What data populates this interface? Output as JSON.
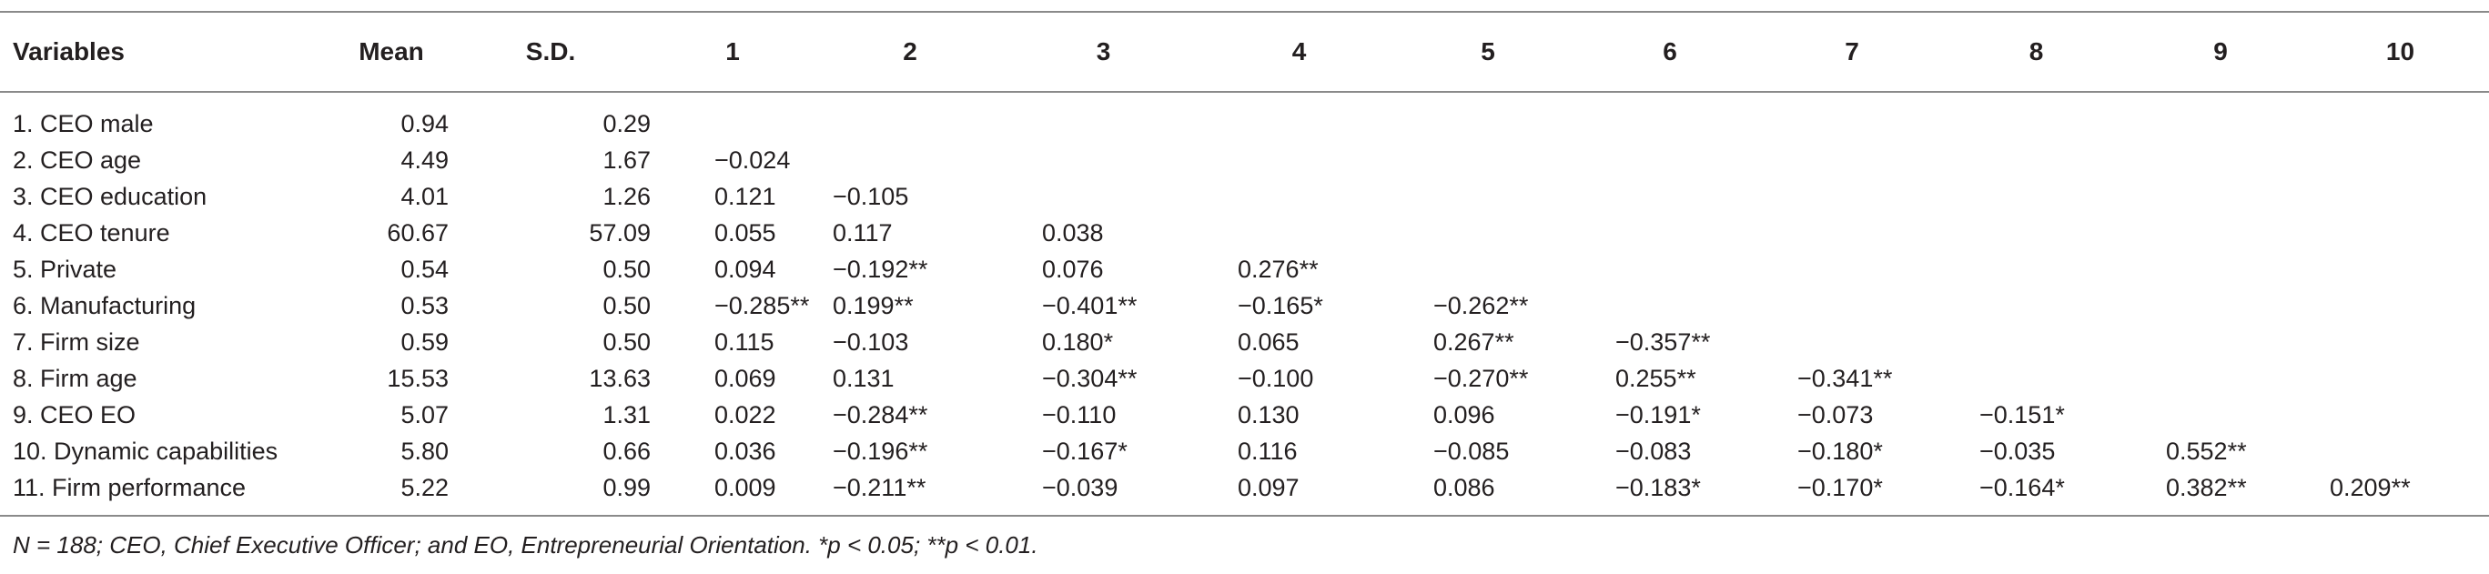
{
  "table": {
    "headers": [
      "Variables",
      "Mean",
      "S.D.",
      "1",
      "2",
      "3",
      "4",
      "5",
      "6",
      "7",
      "8",
      "9",
      "10"
    ],
    "rows": [
      {
        "variable": "1. CEO male",
        "mean": "0.94",
        "sd": "0.29",
        "corr": [
          "",
          "",
          "",
          "",
          "",
          "",
          "",
          "",
          "",
          ""
        ]
      },
      {
        "variable": "2. CEO age",
        "mean": "4.49",
        "sd": "1.67",
        "corr": [
          "−0.024",
          "",
          "",
          "",
          "",
          "",
          "",
          "",
          "",
          ""
        ]
      },
      {
        "variable": "3. CEO education",
        "mean": "4.01",
        "sd": "1.26",
        "corr": [
          "0.121",
          "−0.105",
          "",
          "",
          "",
          "",
          "",
          "",
          "",
          ""
        ]
      },
      {
        "variable": "4. CEO tenure",
        "mean": "60.67",
        "sd": "57.09",
        "corr": [
          "0.055",
          "0.117",
          "0.038",
          "",
          "",
          "",
          "",
          "",
          "",
          ""
        ]
      },
      {
        "variable": "5. Private",
        "mean": "0.54",
        "sd": "0.50",
        "corr": [
          "0.094",
          "−0.192**",
          "0.076",
          "0.276**",
          "",
          "",
          "",
          "",
          "",
          ""
        ]
      },
      {
        "variable": "6. Manufacturing",
        "mean": "0.53",
        "sd": "0.50",
        "corr": [
          "−0.285**",
          "0.199**",
          "−0.401**",
          "−0.165*",
          "−0.262**",
          "",
          "",
          "",
          "",
          ""
        ]
      },
      {
        "variable": "7. Firm size",
        "mean": "0.59",
        "sd": "0.50",
        "corr": [
          "0.115",
          "−0.103",
          "0.180*",
          "0.065",
          "0.267**",
          "−0.357**",
          "",
          "",
          "",
          ""
        ]
      },
      {
        "variable": "8. Firm age",
        "mean": "15.53",
        "sd": "13.63",
        "corr": [
          "0.069",
          "0.131",
          "−0.304**",
          "−0.100",
          "−0.270**",
          "0.255**",
          "−0.341**",
          "",
          "",
          ""
        ]
      },
      {
        "variable": "9. CEO EO",
        "mean": "5.07",
        "sd": "1.31",
        "corr": [
          "0.022",
          "−0.284**",
          "−0.110",
          "0.130",
          "0.096",
          "−0.191*",
          "−0.073",
          "−0.151*",
          "",
          ""
        ]
      },
      {
        "variable": "10. Dynamic capabilities",
        "mean": "5.80",
        "sd": "0.66",
        "corr": [
          "0.036",
          "−0.196**",
          "−0.167*",
          "0.116",
          "−0.085",
          "−0.083",
          "−0.180*",
          "−0.035",
          "0.552**",
          ""
        ]
      },
      {
        "variable": "11. Firm performance",
        "mean": "5.22",
        "sd": "0.99",
        "corr": [
          "0.009",
          "−0.211**",
          "−0.039",
          "0.097",
          "0.086",
          "−0.183*",
          "−0.170*",
          "−0.164*",
          "0.382**",
          "0.209**"
        ]
      }
    ]
  },
  "footnote": "N = 188; CEO, Chief Executive Officer; and EO, Entrepreneurial Orientation. *p < 0.05; **p < 0.01."
}
